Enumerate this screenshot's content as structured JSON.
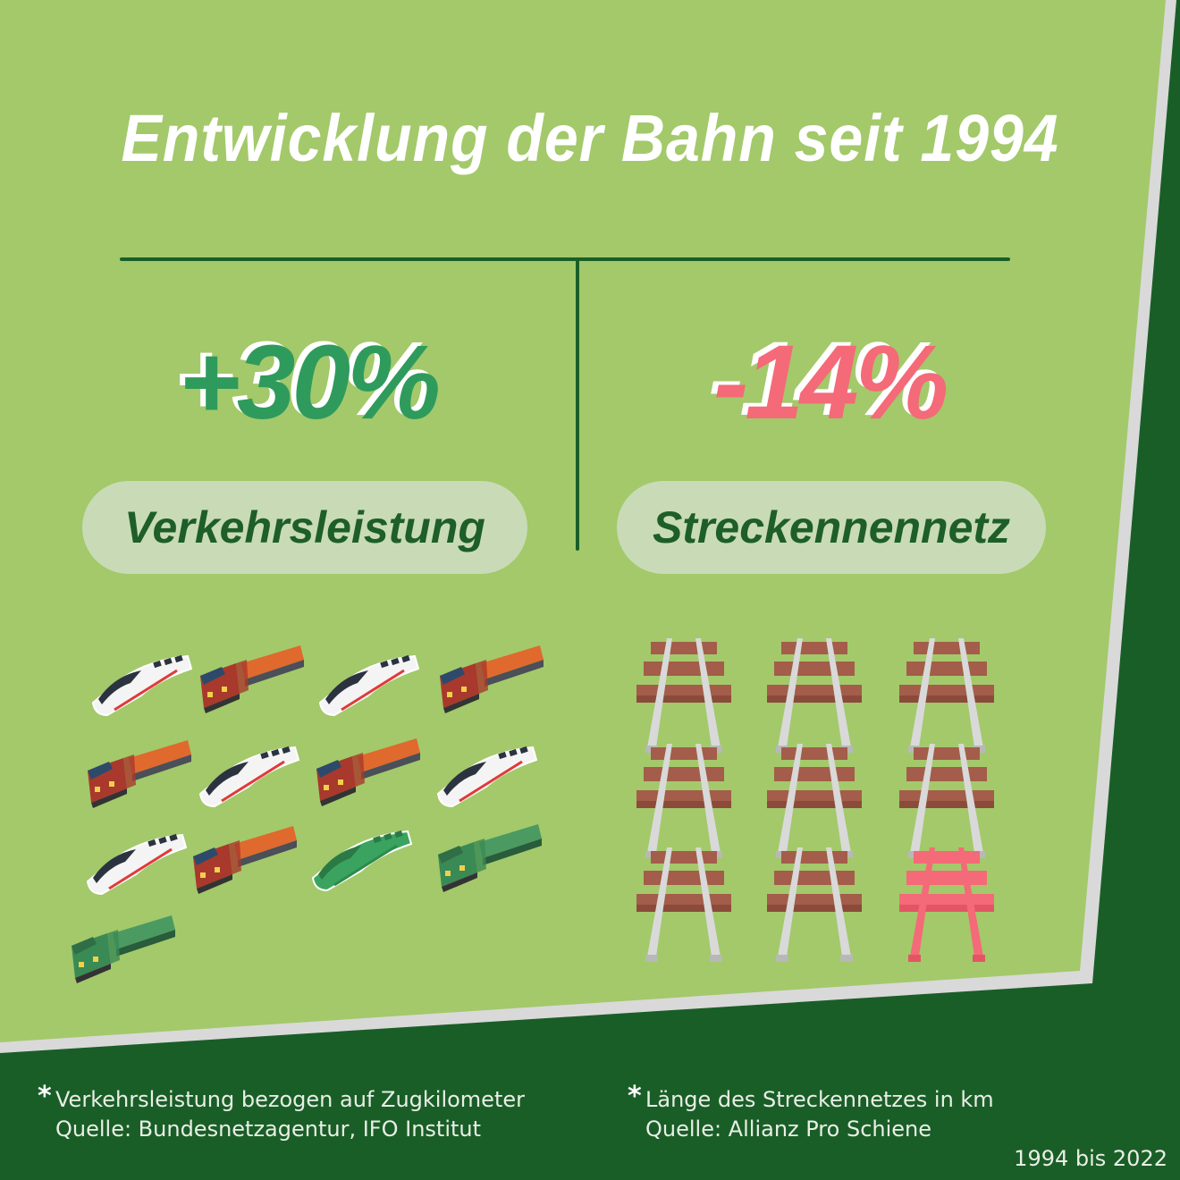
{
  "title": "Entwicklung der Bahn seit 1994",
  "left": {
    "value": "+30%",
    "label": "Verkehrsleistung",
    "icons": [
      "ice-train",
      "freight-train",
      "ice-train",
      "freight-train",
      "freight-train",
      "ice-train",
      "freight-train",
      "ice-train",
      "ice-train",
      "freight-train",
      "ice-train-green",
      "freight-train-green",
      "freight-train-green"
    ]
  },
  "right": {
    "value": "-14%",
    "label": "Streckennennetz",
    "icons": [
      "rail-track",
      "rail-track",
      "rail-track",
      "rail-track",
      "rail-track",
      "rail-track",
      "rail-track",
      "rail-track",
      "rail-track-pink"
    ]
  },
  "footnotes": {
    "left": {
      "line1": "Verkehrsleistung bezogen auf Zugkilometer",
      "line2": "Quelle: Bundesnetzagentur, IFO Institut"
    },
    "right": {
      "line1": "Länge des Streckennetzes in km",
      "line2": "Quelle: Allianz Pro Schiene"
    },
    "asterisk": "*"
  },
  "period": "1994 bis 2022",
  "colors": {
    "background_light": "#a3c96a",
    "background_dark": "#1a5e27",
    "increase": "#2e9b5c",
    "decrease": "#f46a78",
    "pill": "#c8dbb6"
  }
}
